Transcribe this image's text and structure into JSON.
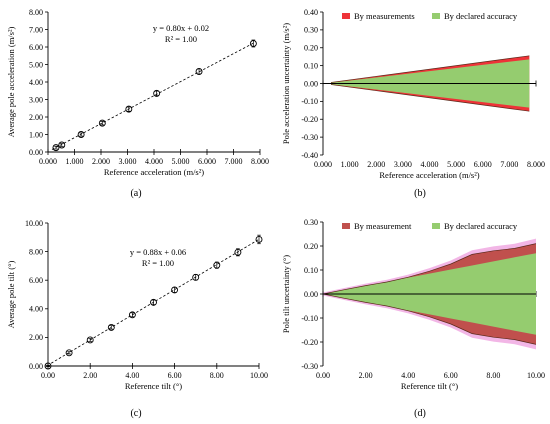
{
  "chart_data": [
    {
      "type": "scatter",
      "panel": "(a)",
      "xlabel": "Reference acceleration (m/s²)",
      "ylabel": "Average pole acceleration (m/s²)",
      "xlim": [
        0,
        8
      ],
      "ylim": [
        0,
        8
      ],
      "xticks": [
        "0.000",
        "1.000",
        "2.000",
        "3.000",
        "4.000",
        "5.000",
        "6.000",
        "7.000",
        "8.000"
      ],
      "yticks": [
        "0.00",
        "1.00",
        "2.00",
        "3.00",
        "4.00",
        "5.00",
        "6.00",
        "7.00",
        "8.00"
      ],
      "x": [
        0.3,
        0.52,
        1.25,
        2.05,
        3.05,
        4.1,
        5.7,
        7.75
      ],
      "y": [
        0.25,
        0.4,
        1.0,
        1.65,
        2.45,
        3.35,
        4.6,
        6.2
      ],
      "yerr": [
        0.08,
        0.08,
        0.09,
        0.1,
        0.12,
        0.13,
        0.15,
        0.2
      ],
      "fit": {
        "slope": 0.8,
        "intercept": 0.02
      },
      "equation": "y = 0.80x + 0.02",
      "r2": "R² = 1.00"
    },
    {
      "type": "area",
      "panel": "(b)",
      "xlabel": "Reference acceleration (m/s²)",
      "ylabel": "Pole acceleration uncertainty (m/s²)",
      "xlim": [
        0,
        8
      ],
      "ylim": [
        -0.4,
        0.4
      ],
      "xticks": [
        "0.000",
        "1.000",
        "2.000",
        "3.000",
        "4.000",
        "5.000",
        "6.000",
        "7.000",
        "8.000"
      ],
      "yticks": [
        "0.40",
        "0.30",
        "0.20",
        "0.10",
        "0.00",
        "-0.10",
        "-0.20",
        "-0.30",
        "-0.40"
      ],
      "legend": [
        "By measurements",
        "By declared accuracy"
      ],
      "legend_position": "top",
      "x": [
        0.3,
        7.75
      ],
      "measurement": [
        0.006,
        0.155
      ],
      "declared": [
        0.004,
        0.135
      ],
      "colors": {
        "measurement": "#ee3338",
        "declared": "#95cc6f"
      }
    },
    {
      "type": "scatter",
      "panel": "(c)",
      "xlabel": "Reference tilt (°)",
      "ylabel": "Average pole tilt (°)",
      "xlim": [
        0,
        10
      ],
      "ylim": [
        0,
        10
      ],
      "xticks": [
        "0.00",
        "2.00",
        "4.00",
        "6.00",
        "8.00",
        "10.00"
      ],
      "yticks": [
        "0.00",
        "2.00",
        "4.00",
        "6.00",
        "8.00",
        "10.00"
      ],
      "x": [
        0,
        1,
        2,
        3,
        4,
        5,
        6,
        7,
        8,
        9,
        10
      ],
      "y": [
        0.0,
        0.92,
        1.82,
        2.7,
        3.58,
        4.45,
        5.32,
        6.2,
        7.05,
        7.95,
        8.85
      ],
      "yerr": [
        0.05,
        0.08,
        0.1,
        0.12,
        0.14,
        0.16,
        0.18,
        0.2,
        0.22,
        0.25,
        0.3
      ],
      "fit": {
        "slope": 0.88,
        "intercept": 0.06
      },
      "equation": "y = 0.88x + 0.06",
      "r2": "R² = 1.00"
    },
    {
      "type": "area",
      "panel": "(d)",
      "xlabel": "Reference tilt (°)",
      "ylabel": "Pole tilt uncertainty (°)",
      "xlim": [
        0,
        10
      ],
      "ylim": [
        -0.3,
        0.3
      ],
      "xticks": [
        "0.00",
        "2.00",
        "4.00",
        "6.00",
        "8.00",
        "10.00"
      ],
      "yticks": [
        "0.30",
        "0.20",
        "0.10",
        "0.00",
        "-0.10",
        "-0.20",
        "-0.30"
      ],
      "legend": [
        "By measurement",
        "By declared accuracy"
      ],
      "legend_position": "top",
      "x": [
        0,
        1,
        2,
        3,
        4,
        5,
        6,
        7,
        8,
        9,
        10
      ],
      "measurement": [
        0.0,
        0.018,
        0.035,
        0.05,
        0.07,
        0.095,
        0.125,
        0.165,
        0.18,
        0.19,
        0.21
      ],
      "declared": [
        0.0,
        0.017,
        0.034,
        0.051,
        0.068,
        0.085,
        0.102,
        0.119,
        0.136,
        0.153,
        0.17
      ],
      "colors": {
        "measurement": "#c0504d",
        "declared": "#95cc6f",
        "halo": "#f2b6e6"
      }
    }
  ]
}
